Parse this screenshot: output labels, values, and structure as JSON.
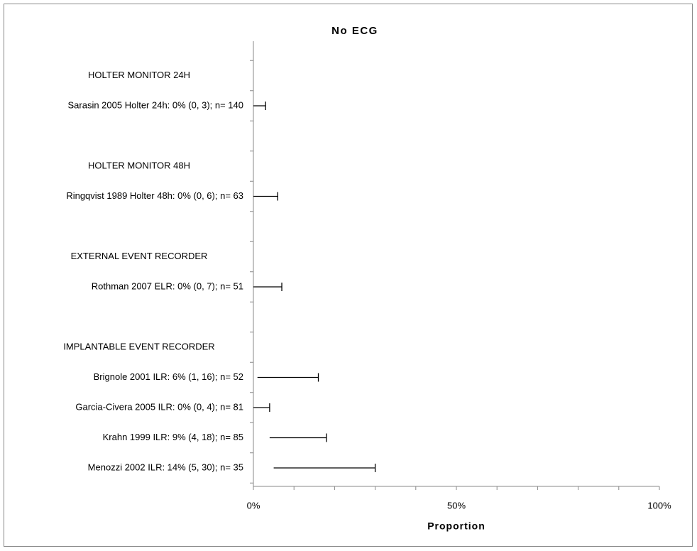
{
  "chart_data": {
    "type": "forest",
    "title": "No ECG",
    "x_label": "Proportion",
    "categories": [
      null,
      "HOLTER MONITOR 24H",
      "Sarasin 2005 Holter 24h: 0% (0, 3); n= 140",
      null,
      "HOLTER MONITOR 48H",
      "Ringqvist 1989 Holter 48h: 0% (0, 6); n= 63",
      null,
      "EXTERNAL EVENT RECORDER",
      "Rothman 2007 ELR: 0% (0, 7); n= 51",
      null,
      "IMPLANTABLE EVENT RECORDER",
      "Brignole 2001 ILR: 6% (1, 16); n= 52",
      "Garcia-Civera 2005 ILR: 0% (0, 4); n= 81",
      "Krahn 1999 ILR: 9% (4, 18); n= 85",
      "Menozzi 2002 ILR: 14% (5, 30); n= 35"
    ],
    "lower": [
      null,
      null,
      0,
      null,
      null,
      0,
      null,
      null,
      0,
      null,
      null,
      1,
      0,
      4,
      5
    ],
    "upper": [
      null,
      null,
      3,
      null,
      null,
      6,
      null,
      null,
      7,
      null,
      null,
      16,
      4,
      18,
      30
    ],
    "color": "#000000",
    "xlim": [
      0,
      100
    ],
    "xticks": [
      {
        "value": 0,
        "label": "0%"
      },
      {
        "value": 50,
        "label": "50%"
      },
      {
        "value": 100,
        "label": "100%"
      }
    ],
    "minor_xticks": [
      10,
      20,
      30,
      40,
      60,
      70,
      80,
      90
    ]
  }
}
